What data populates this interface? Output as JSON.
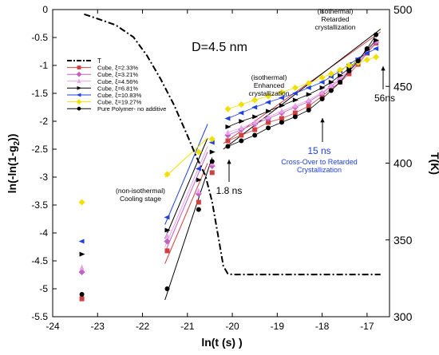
{
  "chart_data": {
    "type": "scatter",
    "title": "D=4.5 nm",
    "xlabel": "ln(t (s) )",
    "ylabel_left_parts": [
      "ln(-ln(1-g",
      "2",
      "))"
    ],
    "ylabel_right": "T(K)",
    "xlim": [
      -24,
      -16.5
    ],
    "ylim_left": [
      -5.5,
      0
    ],
    "ylim_right": [
      300,
      500
    ],
    "x_ticks": [
      -24,
      -23,
      -22,
      -21,
      -20,
      -19,
      -18,
      -17
    ],
    "x_tick_labels": [
      "-24",
      "-23",
      "-22",
      "-21",
      "-20",
      "-19",
      "-18",
      "-17"
    ],
    "y_ticks": [
      0,
      -0.5,
      -1,
      -1.5,
      -2,
      -2.5,
      -3,
      -3.5,
      -4,
      -4.5,
      -5,
      -5.5
    ],
    "y_tick_labels": [
      "0",
      "-0.5",
      "-1",
      "-1.5",
      "-2",
      "-2.5",
      "-3",
      "-3.5",
      "-4",
      "-4.5",
      "-5",
      "-5.5"
    ],
    "y2_ticks": [
      300,
      350,
      400,
      450,
      500
    ],
    "y2_tick_labels": [
      "300",
      "350",
      "400",
      "450",
      "500"
    ],
    "legend_position": "upper-left",
    "temperature": {
      "name": "T",
      "color": "#000000",
      "x": [
        -23.3,
        -23.0,
        -22.6,
        -22.2,
        -21.9,
        -21.6,
        -21.3,
        -21.0,
        -20.8,
        -20.6,
        -20.45,
        -20.3,
        -20.2,
        -20.1,
        -20.0,
        -19.0,
        -18.0,
        -17.0,
        -16.7
      ],
      "y": [
        497,
        494,
        490,
        482,
        470,
        455,
        438,
        418,
        404,
        392,
        375,
        350,
        333,
        328,
        327.5,
        327.5,
        327.5,
        327.5,
        327.5
      ]
    },
    "series": [
      {
        "name": "Cube, ξ=2.33%",
        "color": "#d04040",
        "marker": "square",
        "x": [
          -23.35,
          -21.45,
          -20.75,
          -20.45,
          -20.1,
          -19.8,
          -19.5,
          -19.2,
          -18.9,
          -18.6,
          -18.3,
          -18.0,
          -17.8,
          -17.6,
          -17.4,
          -17.2,
          -17.0,
          -16.8
        ],
        "y": [
          -5.18,
          -4.32,
          -3.45,
          -2.92,
          -2.35,
          -2.25,
          -2.15,
          -2.02,
          -1.95,
          -1.85,
          -1.73,
          -1.55,
          -1.42,
          -1.3,
          -1.15,
          -0.98,
          -0.78,
          -0.6
        ]
      },
      {
        "name": "Cube, ξ=3.21%",
        "color": "#c060c0",
        "marker": "diamond",
        "x": [
          -23.35,
          -21.45,
          -20.75,
          -20.45,
          -20.1,
          -19.8,
          -19.5,
          -19.2,
          -18.9,
          -18.6,
          -18.3,
          -18.0,
          -17.8,
          -17.6,
          -17.4,
          -17.2,
          -17.0,
          -16.8
        ],
        "y": [
          -4.7,
          -4.15,
          -3.3,
          -2.8,
          -2.25,
          -2.15,
          -2.05,
          -1.95,
          -1.85,
          -1.75,
          -1.65,
          -1.5,
          -1.38,
          -1.25,
          -1.1,
          -0.95,
          -0.75,
          -0.58
        ]
      },
      {
        "name": "Cube, ξ=4.56%",
        "color": "#e8a0e8",
        "marker": "triangle-up",
        "x": [
          -23.35,
          -21.45,
          -20.75,
          -20.45,
          -20.1,
          -19.8,
          -19.5,
          -19.2,
          -18.9,
          -18.6,
          -18.3,
          -18.0,
          -17.8,
          -17.6,
          -17.4,
          -17.2,
          -17.0,
          -16.8
        ],
        "y": [
          -4.62,
          -4.05,
          -3.25,
          -2.75,
          -2.2,
          -2.12,
          -2.02,
          -1.92,
          -1.82,
          -1.72,
          -1.62,
          -1.48,
          -1.36,
          -1.22,
          -1.08,
          -0.92,
          -0.72,
          -0.55
        ]
      },
      {
        "name": "Cube, ξ=6.81%",
        "color": "#000000",
        "marker": "triangle-right",
        "x": [
          -23.35,
          -21.45,
          -20.75,
          -20.45,
          -20.1,
          -19.8,
          -19.5,
          -19.2,
          -18.9,
          -18.6,
          -18.3,
          -18.0,
          -17.8,
          -17.6,
          -17.4,
          -17.2,
          -17.0,
          -16.8
        ],
        "y": [
          -4.38,
          -3.95,
          -3.05,
          -2.55,
          -2.1,
          -2.0,
          -1.92,
          -1.82,
          -1.72,
          -1.62,
          -1.52,
          -1.4,
          -1.3,
          -1.18,
          -1.05,
          -0.9,
          -0.72,
          -0.55
        ]
      },
      {
        "name": "Cube, ξ=10.83%",
        "color": "#2040e0",
        "marker": "triangle-left",
        "x": [
          -23.35,
          -21.45,
          -20.75,
          -20.45,
          -20.1,
          -19.8,
          -19.5,
          -19.2,
          -18.9,
          -18.6,
          -18.3,
          -18.0,
          -17.8,
          -17.6,
          -17.4,
          -17.2,
          -17.0,
          -16.8
        ],
        "y": [
          -4.15,
          -3.72,
          -2.85,
          -2.38,
          -1.95,
          -1.85,
          -1.75,
          -1.66,
          -1.58,
          -1.5,
          -1.4,
          -1.3,
          -1.2,
          -1.1,
          -0.98,
          -0.88,
          -0.78,
          -0.7
        ]
      },
      {
        "name": "Cube, ξ=19.27%",
        "color": "#f0e000",
        "marker": "diamond",
        "x": [
          -23.35,
          -21.45,
          -20.75,
          -20.45,
          -20.1,
          -19.8,
          -19.5,
          -19.2,
          -18.9,
          -18.6,
          -18.3,
          -18.0,
          -17.8,
          -17.6,
          -17.4,
          -17.2,
          -17.0,
          -16.8
        ],
        "y": [
          -3.45,
          -2.95,
          -2.55,
          -2.32,
          -1.78,
          -1.7,
          -1.62,
          -1.55,
          -1.48,
          -1.4,
          -1.32,
          -1.22,
          -1.15,
          -1.08,
          -1.0,
          -0.95,
          -0.9,
          -0.85
        ]
      },
      {
        "name": "Pure Polymer- no additive",
        "color": "#000000",
        "marker": "circle",
        "x": [
          -23.35,
          -21.45,
          -20.75,
          -20.45,
          -20.1,
          -19.8,
          -19.5,
          -19.2,
          -18.9,
          -18.6,
          -18.3,
          -18.0,
          -17.8,
          -17.6,
          -17.4,
          -17.2,
          -17.0,
          -16.8
        ],
        "y": [
          -5.1,
          -5.0,
          -3.58,
          -2.72,
          -2.45,
          -2.35,
          -2.25,
          -2.12,
          -2.02,
          -1.92,
          -1.8,
          -1.6,
          -1.45,
          -1.3,
          -1.1,
          -0.92,
          -0.7,
          -0.45
        ]
      }
    ],
    "fit_lines": [
      {
        "color": "#d04040",
        "x": [
          -21.5,
          -20.55
        ],
        "y": [
          -4.55,
          -2.75
        ]
      },
      {
        "color": "#c060c0",
        "x": [
          -21.5,
          -20.55
        ],
        "y": [
          -4.35,
          -2.55
        ]
      },
      {
        "color": "#e8a0e8",
        "x": [
          -21.5,
          -20.55
        ],
        "y": [
          -4.25,
          -2.45
        ]
      },
      {
        "color": "#000000",
        "x": [
          -21.5,
          -20.55
        ],
        "y": [
          -4.1,
          -2.3
        ]
      },
      {
        "color": "#2040e0",
        "x": [
          -21.5,
          -20.55
        ],
        "y": [
          -3.85,
          -2.05
        ]
      },
      {
        "color": "#f0e000",
        "x": [
          -21.5,
          -20.55
        ],
        "y": [
          -3.0,
          -2.3
        ]
      },
      {
        "color": "#000000",
        "x": [
          -21.5,
          -20.45
        ],
        "y": [
          -5.2,
          -2.65
        ]
      },
      {
        "color": "#d04040",
        "x": [
          -20.2,
          -16.7
        ],
        "y": [
          -2.4,
          -0.4
        ]
      },
      {
        "color": "#000000",
        "x": [
          -20.2,
          -16.7
        ],
        "y": [
          -2.5,
          -0.35
        ]
      }
    ],
    "annotations": [
      {
        "id": "cooling",
        "lines": [
          "(non-isothermal)",
          "Cooling stage"
        ],
        "color": "#000000"
      },
      {
        "id": "enhanced",
        "lines": [
          "(isothermal)",
          "Enhanced",
          "crystallization"
        ],
        "color": "#000000"
      },
      {
        "id": "retarded",
        "lines": [
          "(isothermal)",
          "Retarded",
          "crystallization"
        ],
        "color": "#000000"
      },
      {
        "id": "t18",
        "lines": [
          "1.8 ns"
        ],
        "color": "#000000"
      },
      {
        "id": "t56",
        "lines": [
          "56ns"
        ],
        "color": "#000000"
      },
      {
        "id": "crossover",
        "lines": [
          "15 ns",
          "Cross-Over to Retarded",
          "Crystallization"
        ],
        "color": "#2040e0"
      }
    ]
  }
}
